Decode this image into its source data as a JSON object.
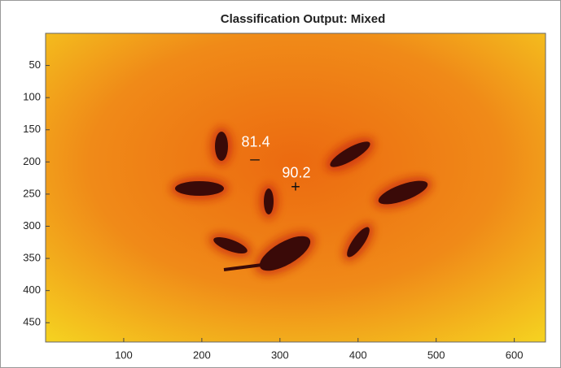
{
  "chart_data": {
    "type": "image",
    "title": "Classification Output: Mixed",
    "xlim": [
      0,
      640
    ],
    "ylim": [
      0,
      480
    ],
    "y_reversed": true,
    "xticks": [
      100,
      200,
      300,
      400,
      500,
      600
    ],
    "yticks": [
      50,
      100,
      150,
      200,
      250,
      300,
      350,
      400,
      450
    ],
    "annotations": [
      {
        "text": "81.4",
        "x": 269,
        "y": 170
      },
      {
        "text": "90.2",
        "x": 321,
        "y": 218
      }
    ],
    "markers": [
      {
        "symbol": "_",
        "x": 268,
        "y": 186
      },
      {
        "symbol": "+",
        "x": 320,
        "y": 240
      }
    ]
  }
}
